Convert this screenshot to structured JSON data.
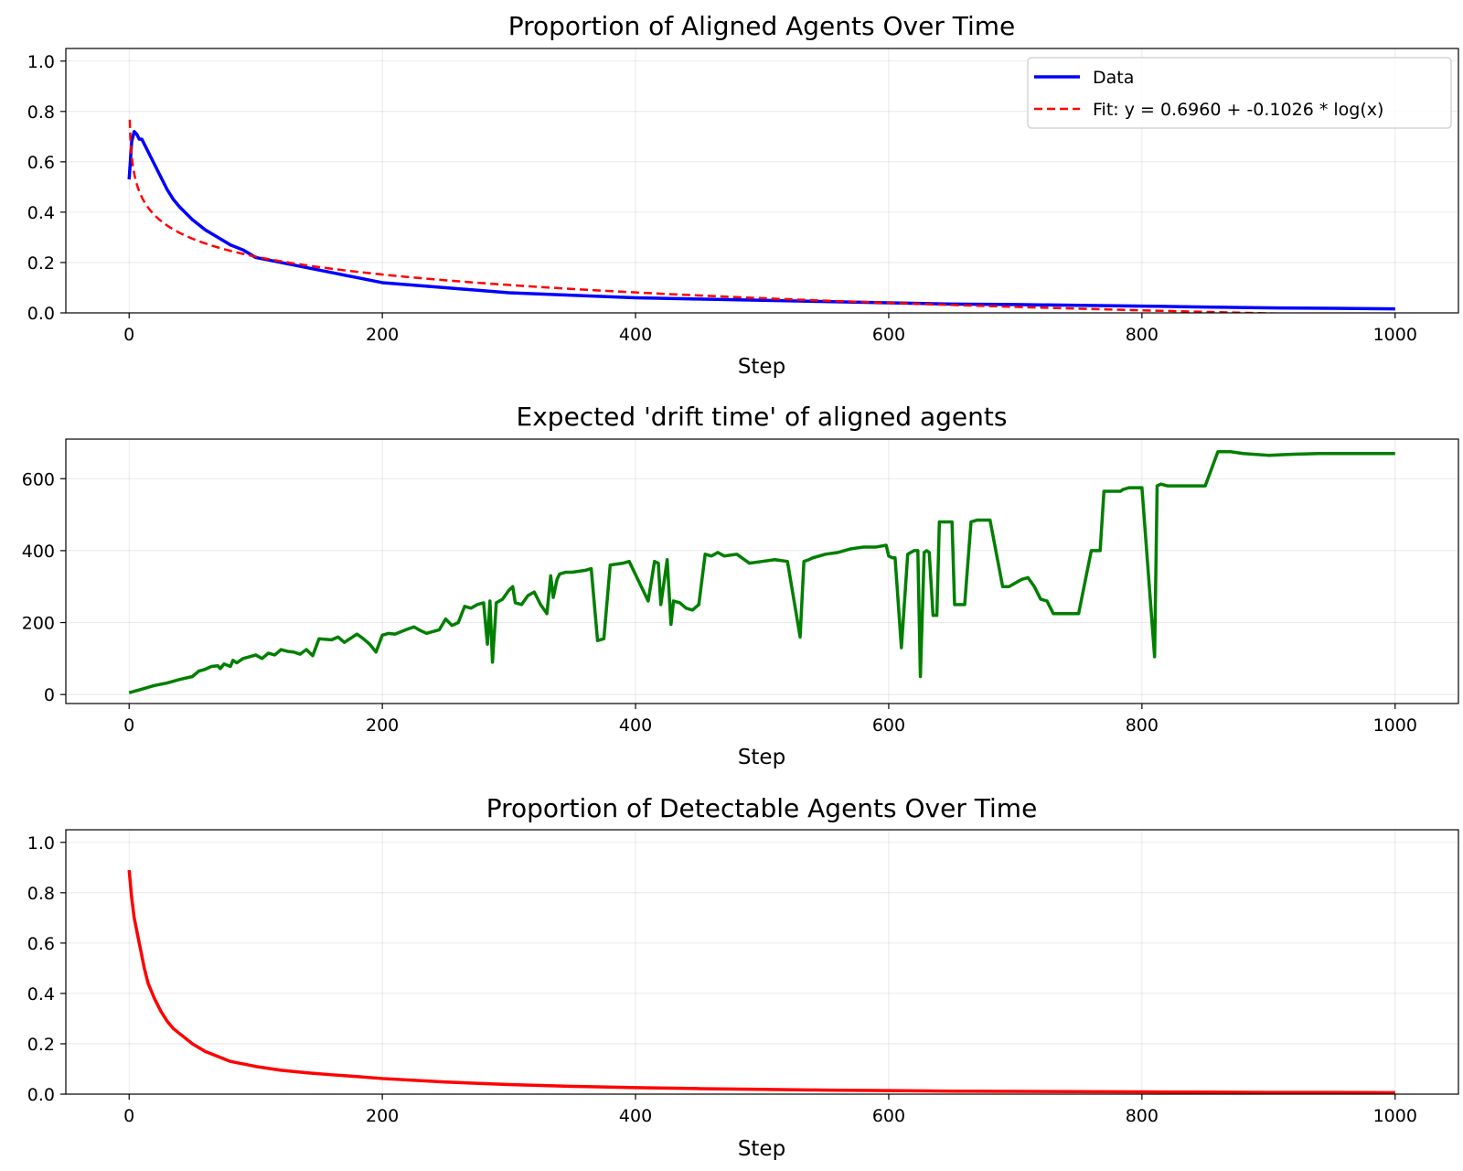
{
  "chart_data": [
    {
      "type": "line",
      "title": "Proportion of Aligned Agents Over Time",
      "xlabel": "Step",
      "ylabel": "",
      "xlim": [
        -50,
        1050
      ],
      "ylim": [
        0.0,
        1.05
      ],
      "xticks": [
        0,
        200,
        400,
        600,
        800,
        1000
      ],
      "yticks": [
        0.0,
        0.2,
        0.4,
        0.6,
        0.8,
        1.0
      ],
      "grid": true,
      "legend_position": "top-right",
      "series": [
        {
          "name": "Data",
          "color": "#0000ff",
          "style": "solid",
          "x": [
            0,
            2,
            4,
            6,
            8,
            10,
            13,
            16,
            20,
            25,
            30,
            35,
            40,
            50,
            60,
            70,
            80,
            90,
            100,
            120,
            140,
            160,
            180,
            200,
            250,
            300,
            350,
            400,
            450,
            500,
            550,
            600,
            650,
            700,
            750,
            800,
            850,
            900,
            950,
            1000
          ],
          "y": [
            0.53,
            0.68,
            0.72,
            0.71,
            0.69,
            0.69,
            0.66,
            0.63,
            0.59,
            0.54,
            0.49,
            0.45,
            0.42,
            0.37,
            0.33,
            0.3,
            0.27,
            0.25,
            0.22,
            0.2,
            0.18,
            0.16,
            0.14,
            0.12,
            0.1,
            0.08,
            0.07,
            0.06,
            0.055,
            0.05,
            0.045,
            0.04,
            0.035,
            0.033,
            0.03,
            0.027,
            0.023,
            0.02,
            0.018,
            0.016
          ]
        },
        {
          "name": "Fit: y = 0.6960 + -0.1026 * log(x)",
          "color": "#ff0000",
          "style": "dashed",
          "formula": {
            "a": 0.696,
            "b": -0.1026
          }
        }
      ]
    },
    {
      "type": "line",
      "title": "Expected 'drift time' of aligned agents",
      "xlabel": "Step",
      "ylabel": "",
      "xlim": [
        -50,
        1050
      ],
      "ylim": [
        -25,
        710
      ],
      "xticks": [
        0,
        200,
        400,
        600,
        800,
        1000
      ],
      "yticks": [
        0,
        200,
        400,
        600
      ],
      "grid": true,
      "series": [
        {
          "color": "#007f00",
          "style": "solid",
          "x": [
            0,
            10,
            20,
            30,
            40,
            50,
            55,
            60,
            65,
            70,
            72,
            75,
            80,
            82,
            85,
            90,
            95,
            100,
            105,
            110,
            115,
            120,
            125,
            130,
            135,
            140,
            145,
            150,
            160,
            165,
            170,
            180,
            185,
            190,
            195,
            200,
            205,
            210,
            220,
            225,
            230,
            235,
            240,
            245,
            250,
            255,
            260,
            265,
            270,
            275,
            280,
            283,
            285,
            287,
            290,
            295,
            300,
            303,
            305,
            310,
            315,
            320,
            325,
            330,
            333,
            335,
            338,
            340,
            345,
            350,
            360,
            365,
            370,
            375,
            380,
            390,
            395,
            410,
            415,
            418,
            420,
            425,
            428,
            430,
            435,
            440,
            445,
            450,
            455,
            460,
            465,
            470,
            480,
            490,
            500,
            510,
            520,
            530,
            533,
            537,
            540,
            550,
            560,
            570,
            580,
            590,
            598,
            600,
            603,
            605,
            610,
            615,
            620,
            623,
            625,
            628,
            630,
            632,
            635,
            638,
            640,
            650,
            652,
            655,
            660,
            665,
            670,
            675,
            680,
            690,
            695,
            700,
            705,
            710,
            715,
            720,
            725,
            730,
            740,
            750,
            760,
            767,
            770,
            780,
            783,
            785,
            790,
            800,
            810,
            812,
            815,
            820,
            830,
            840,
            850,
            860,
            867,
            870,
            880,
            900,
            920,
            940,
            960,
            980,
            1000
          ],
          "y": [
            5,
            15,
            25,
            32,
            42,
            50,
            65,
            70,
            78,
            80,
            72,
            85,
            78,
            95,
            88,
            100,
            105,
            110,
            100,
            115,
            110,
            125,
            120,
            118,
            112,
            125,
            108,
            155,
            152,
            160,
            145,
            168,
            155,
            140,
            118,
            165,
            170,
            168,
            182,
            188,
            178,
            170,
            175,
            180,
            210,
            192,
            200,
            245,
            240,
            250,
            255,
            140,
            260,
            90,
            255,
            265,
            290,
            300,
            255,
            250,
            275,
            285,
            250,
            225,
            330,
            270,
            320,
            335,
            340,
            340,
            345,
            350,
            150,
            155,
            360,
            365,
            370,
            260,
            370,
            365,
            250,
            375,
            195,
            260,
            255,
            240,
            235,
            250,
            390,
            385,
            395,
            385,
            390,
            365,
            370,
            375,
            370,
            160,
            370,
            375,
            380,
            390,
            395,
            405,
            410,
            410,
            415,
            385,
            380,
            380,
            130,
            390,
            400,
            400,
            50,
            395,
            400,
            395,
            220,
            220,
            480,
            480,
            250,
            250,
            250,
            480,
            485,
            485,
            485,
            300,
            300,
            310,
            320,
            325,
            300,
            265,
            260,
            225,
            225,
            225,
            400,
            400,
            565,
            565,
            565,
            570,
            575,
            575,
            105,
            580,
            585,
            580,
            580,
            580,
            580,
            675,
            675,
            675,
            670,
            665,
            668,
            670,
            670,
            670,
            670
          ]
        }
      ]
    },
    {
      "type": "line",
      "title": "Proportion of Detectable Agents Over Time",
      "xlabel": "Step",
      "ylabel": "",
      "xlim": [
        -50,
        1050
      ],
      "ylim": [
        0.0,
        1.05
      ],
      "xticks": [
        0,
        200,
        400,
        600,
        800,
        1000
      ],
      "yticks": [
        0.0,
        0.2,
        0.4,
        0.6,
        0.8,
        1.0
      ],
      "grid": true,
      "series": [
        {
          "color": "#ff0000",
          "style": "solid",
          "x": [
            0,
            2,
            4,
            6,
            8,
            10,
            12,
            15,
            20,
            25,
            30,
            35,
            40,
            50,
            60,
            70,
            80,
            90,
            100,
            120,
            140,
            160,
            180,
            200,
            250,
            300,
            350,
            400,
            450,
            500,
            550,
            600,
            650,
            700,
            750,
            800,
            850,
            900,
            950,
            1000
          ],
          "y": [
            0.89,
            0.78,
            0.7,
            0.65,
            0.6,
            0.55,
            0.5,
            0.44,
            0.38,
            0.33,
            0.29,
            0.26,
            0.24,
            0.2,
            0.17,
            0.15,
            0.13,
            0.12,
            0.11,
            0.095,
            0.085,
            0.077,
            0.07,
            0.062,
            0.048,
            0.038,
            0.031,
            0.026,
            0.022,
            0.019,
            0.016,
            0.014,
            0.012,
            0.011,
            0.01,
            0.009,
            0.008,
            0.007,
            0.007,
            0.006
          ]
        }
      ]
    }
  ]
}
